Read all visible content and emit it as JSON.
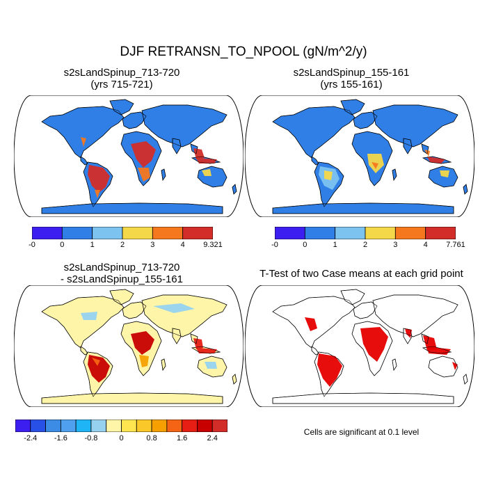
{
  "figure": {
    "title": "DJF RETRANSN_TO_NPOOL (gN/m^2/y)"
  },
  "panels": [
    {
      "id": "case1",
      "title": "s2sLandSpinup_713-720\n(yrs 715-721)",
      "land_base": "#2f7fe6",
      "hotspots": "high",
      "colorbar": {
        "colors": [
          "#3c1ef0",
          "#2f7fe6",
          "#7dc3f0",
          "#f5d84a",
          "#f5781e",
          "#d22d28"
        ],
        "labels": [
          "-0",
          "0",
          "1",
          "2",
          "3",
          "4",
          "9.321"
        ]
      }
    },
    {
      "id": "case2",
      "title": "s2sLandSpinup_155-161\n(yrs 155-161)",
      "land_base": "#2f7fe6",
      "hotspots": "medium",
      "colorbar": {
        "colors": [
          "#3c1ef0",
          "#2f7fe6",
          "#7dc3f0",
          "#f5d84a",
          "#f5781e",
          "#d22d28"
        ],
        "labels": [
          "-0",
          "0",
          "1",
          "2",
          "3",
          "4",
          "7.761"
        ]
      }
    },
    {
      "id": "diff",
      "title": "s2sLandSpinup_713-720\n- s2sLandSpinup_155-161",
      "land_base": "#fff5a8",
      "hotspots": "diff",
      "colorbar": {
        "colors": [
          "#3c1ef0",
          "#2850e6",
          "#3c8ce6",
          "#50a0f0",
          "#1eb4f5",
          "#96d2f0",
          "#fff5a8",
          "#ffe650",
          "#fac828",
          "#f5a000",
          "#f56414",
          "#e61e14",
          "#c80000",
          "#d22d28"
        ],
        "labels": [
          "-2.4",
          "-1.6",
          "-0.8",
          "0",
          "0.8",
          "1.6",
          "2.4"
        ]
      }
    },
    {
      "id": "ttest",
      "title": "T-Test of two Case means at each grid point",
      "land_base": "#ffffff",
      "hotspots": "sig",
      "note": "Cells are significant at 0.1 level"
    }
  ],
  "legend": {
    "significance_color": "#e60000"
  }
}
